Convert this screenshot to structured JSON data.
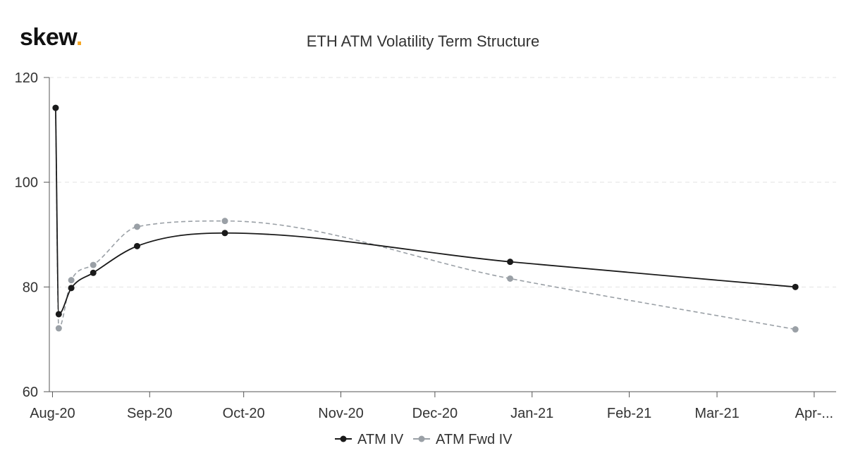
{
  "branding": {
    "logo_text": "skew",
    "logo_dot": ".",
    "logo_dot_color": "#f5a623"
  },
  "chart_data": {
    "type": "line",
    "title": "ETH ATM Volatility Term Structure",
    "xlabel": "",
    "ylabel": "",
    "x_type": "date",
    "xlim": [
      "2020-07-31",
      "2021-04-08"
    ],
    "ylim": [
      60,
      120
    ],
    "y_ticks": [
      60,
      80,
      100,
      120
    ],
    "x_ticks": [
      {
        "date": "2020-08-01",
        "label": "Aug-20"
      },
      {
        "date": "2020-09-01",
        "label": "Sep-20"
      },
      {
        "date": "2020-10-01",
        "label": "Oct-20"
      },
      {
        "date": "2020-11-01",
        "label": "Nov-20"
      },
      {
        "date": "2020-12-01",
        "label": "Dec-20"
      },
      {
        "date": "2021-01-01",
        "label": "Jan-21"
      },
      {
        "date": "2021-02-01",
        "label": "Feb-21"
      },
      {
        "date": "2021-03-01",
        "label": "Mar-21"
      },
      {
        "date": "2021-04-01",
        "label": "Apr-..."
      }
    ],
    "grid": {
      "horizontal": true,
      "vertical": false,
      "style": "dashed"
    },
    "legend_position": "bottom-center",
    "series": [
      {
        "name": "ATM IV",
        "color": "#1a1a1a",
        "line_style": "solid",
        "points": [
          {
            "x": "2020-08-02",
            "y": 114.2
          },
          {
            "x": "2020-08-03",
            "y": 74.8
          },
          {
            "x": "2020-08-07",
            "y": 79.8
          },
          {
            "x": "2020-08-14",
            "y": 82.7
          },
          {
            "x": "2020-08-28",
            "y": 87.8
          },
          {
            "x": "2020-09-25",
            "y": 90.3
          },
          {
            "x": "2020-12-25",
            "y": 84.8
          },
          {
            "x": "2021-03-26",
            "y": 80.0
          }
        ]
      },
      {
        "name": "ATM Fwd IV",
        "color": "#9aa0a6",
        "line_style": "dashed",
        "points": [
          {
            "x": "2020-08-02",
            "y": 114.2
          },
          {
            "x": "2020-08-03",
            "y": 72.1
          },
          {
            "x": "2020-08-07",
            "y": 81.3
          },
          {
            "x": "2020-08-14",
            "y": 84.2
          },
          {
            "x": "2020-08-28",
            "y": 91.5
          },
          {
            "x": "2020-09-25",
            "y": 92.6
          },
          {
            "x": "2020-12-25",
            "y": 81.6
          },
          {
            "x": "2021-03-26",
            "y": 71.9
          }
        ]
      }
    ]
  }
}
